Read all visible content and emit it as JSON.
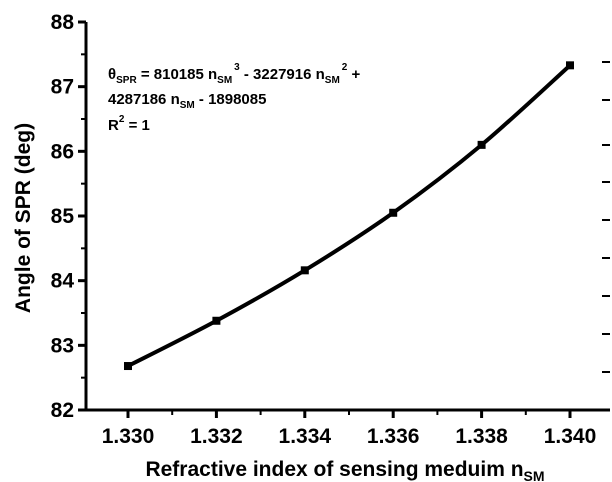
{
  "chart_data": {
    "type": "line",
    "x": [
      1.33,
      1.332,
      1.334,
      1.336,
      1.338,
      1.34
    ],
    "series": [
      {
        "values": [
          82.68,
          83.38,
          84.16,
          85.05,
          86.1,
          87.33
        ]
      }
    ],
    "xlabel": "Refractive index of sensing meduim n",
    "xlabel_sub": "SM",
    "ylabel": "Angle of SPR (deg)",
    "xlim": [
      1.33,
      1.34
    ],
    "ylim": [
      82,
      88
    ],
    "xticks": [
      "1.330",
      "1.332",
      "1.334",
      "1.336",
      "1.338",
      "1.340"
    ],
    "yticks": [
      "82",
      "83",
      "84",
      "85",
      "86",
      "87",
      "88"
    ],
    "grid": false,
    "annotation": {
      "line1_theta": "θ",
      "line1_theta_sub": "SPR",
      "line1_a": " = 810185 n",
      "line1_a_sub": "SM",
      "line1_a_sup": "3",
      "line1_b": " - 3227916 n",
      "line1_b_sub": "SM",
      "line1_b_sup": "2",
      "line1_c": " +",
      "line2_a": "4287186 n",
      "line2_a_sub": "SM",
      "line2_b": " - 1898085",
      "line3_a": "R",
      "line3_sup": "2",
      "line3_b": " = 1"
    },
    "colors": {
      "line": "#000000",
      "marker": "#000000",
      "axis": "#000000"
    }
  }
}
